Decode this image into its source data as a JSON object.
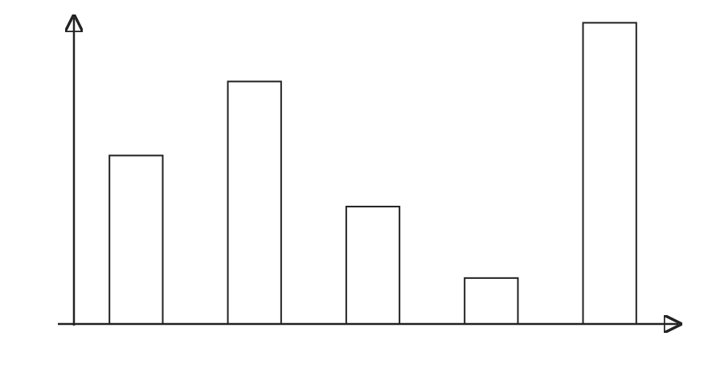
{
  "chart_data": {
    "type": "bar",
    "categories": [
      null,
      null,
      null,
      null,
      null
    ],
    "values": [
      66,
      95,
      46,
      18,
      118
    ],
    "color": "#ffffff",
    "ylim": [
      0,
      120
    ],
    "tick_labels": false,
    "grid": false
  }
}
